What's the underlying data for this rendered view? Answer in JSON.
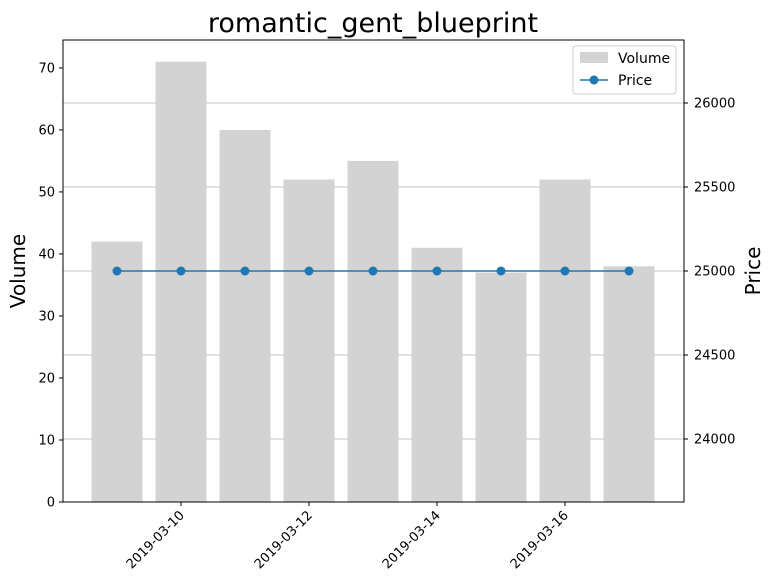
{
  "chart_data": {
    "type": "bar+line",
    "title": "romantic_gent_blueprint",
    "x": [
      "2019-03-09",
      "2019-03-10",
      "2019-03-11",
      "2019-03-12",
      "2019-03-13",
      "2019-03-14",
      "2019-03-15",
      "2019-03-16",
      "2019-03-17"
    ],
    "x_tick_labels": [
      "2019-03-10",
      "2019-03-12",
      "2019-03-14",
      "2019-03-16"
    ],
    "series": [
      {
        "name": "Volume",
        "kind": "bar",
        "axis": "left",
        "color": "#d3d3d3",
        "values": [
          42,
          71,
          60,
          52,
          55,
          41,
          37,
          52,
          38
        ]
      },
      {
        "name": "Price",
        "kind": "line",
        "axis": "right",
        "color": "#1f77b4",
        "values": [
          25000,
          25000,
          25000,
          25000,
          25000,
          25000,
          25000,
          25000,
          25000
        ]
      }
    ],
    "left_axis": {
      "label": "Volume",
      "ylim": [
        0,
        74.5
      ],
      "ticks": [
        0,
        10,
        20,
        30,
        40,
        50,
        60,
        70
      ]
    },
    "right_axis": {
      "label": "Price",
      "ylim": [
        23625,
        26375
      ],
      "ticks": [
        24000,
        24500,
        25000,
        25500,
        26000
      ]
    },
    "grid": "horizontal, right axis",
    "legend": {
      "placement": "top-right",
      "entries": [
        "Volume",
        "Price"
      ]
    }
  }
}
